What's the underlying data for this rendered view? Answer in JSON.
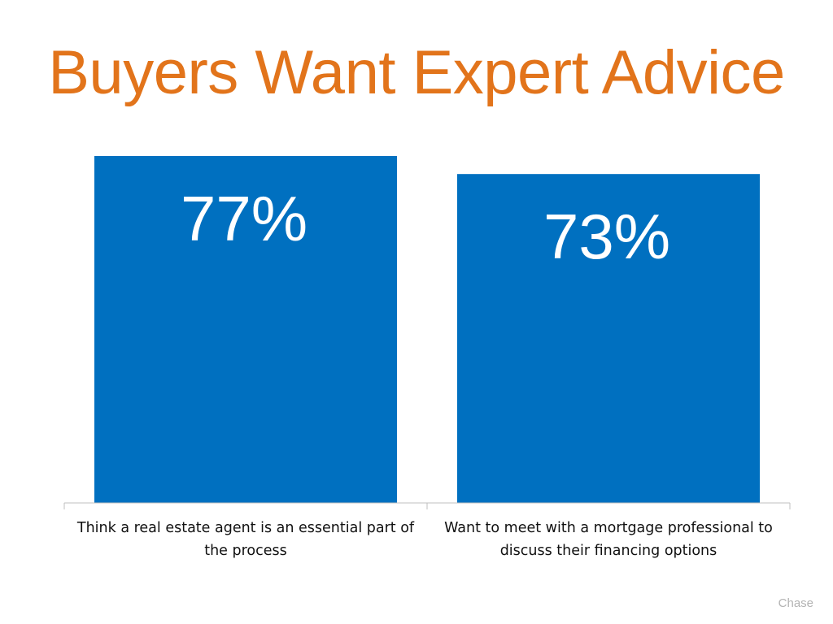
{
  "title": "Buyers Want Expert Advice",
  "source": "Chase",
  "colors": {
    "title": "#E2741B",
    "bar": "#0070C0",
    "data_label": "#FFFFFF",
    "axis": "#BFBFBF"
  },
  "chart_data": {
    "type": "bar",
    "categories": [
      "Think a real estate agent is an essential part of the process",
      "Want to meet with a mortgage professional to discuss their financing options"
    ],
    "values": [
      77,
      73
    ],
    "data_labels": [
      "77%",
      "73%"
    ],
    "unit": "%",
    "ylim": [
      0,
      77
    ],
    "grid": false,
    "legend": "none"
  }
}
